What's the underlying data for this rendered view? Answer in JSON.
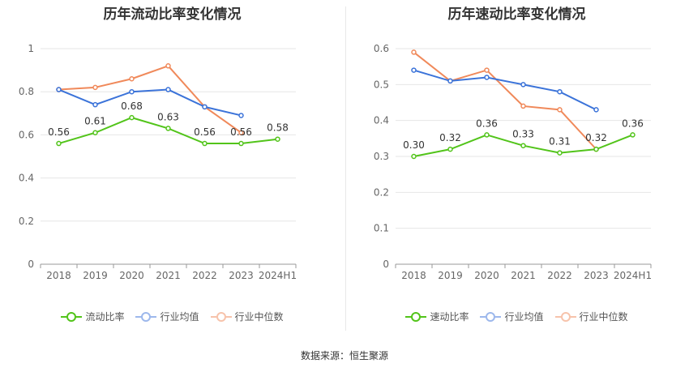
{
  "source": "数据来源：恒生聚源",
  "colors": {
    "primary": "#52c41a",
    "avg": "#3b73d9",
    "median": "#f0895a"
  },
  "chart_data": [
    {
      "type": "line",
      "title": "历年流动比率变化情况",
      "categories": [
        "2018",
        "2019",
        "2020",
        "2021",
        "2022",
        "2023",
        "2024H1"
      ],
      "ylim": [
        0,
        1
      ],
      "yticks": [
        "0",
        "0.2",
        "0.4",
        "0.6",
        "0.8",
        "1"
      ],
      "ytick_values": [
        0,
        0.2,
        0.4,
        0.6,
        0.8,
        1
      ],
      "series": [
        {
          "name": "流动比率",
          "role": "primary",
          "values": [
            0.56,
            0.61,
            0.68,
            0.63,
            0.56,
            0.56,
            0.58
          ],
          "labels": [
            "0.56",
            "0.61",
            "0.68",
            "0.63",
            "0.56",
            "0.56",
            "0.58"
          ]
        },
        {
          "name": "行业均值",
          "role": "avg",
          "values": [
            0.81,
            0.74,
            0.8,
            0.81,
            0.73,
            0.69,
            null
          ]
        },
        {
          "name": "行业中位数",
          "role": "median",
          "values": [
            0.81,
            0.82,
            0.86,
            0.92,
            0.73,
            0.61,
            null
          ]
        }
      ]
    },
    {
      "type": "line",
      "title": "历年速动比率变化情况",
      "categories": [
        "2018",
        "2019",
        "2020",
        "2021",
        "2022",
        "2023",
        "2024H1"
      ],
      "ylim": [
        0,
        0.6
      ],
      "yticks": [
        "0",
        "0.1",
        "0.2",
        "0.3",
        "0.4",
        "0.5",
        "0.6"
      ],
      "ytick_values": [
        0,
        0.1,
        0.2,
        0.3,
        0.4,
        0.5,
        0.6
      ],
      "series": [
        {
          "name": "速动比率",
          "role": "primary",
          "values": [
            0.3,
            0.32,
            0.36,
            0.33,
            0.31,
            0.32,
            0.36
          ],
          "labels": [
            "0.30",
            "0.32",
            "0.36",
            "0.33",
            "0.31",
            "0.32",
            "0.36"
          ]
        },
        {
          "name": "行业均值",
          "role": "avg",
          "values": [
            0.54,
            0.51,
            0.52,
            0.5,
            0.48,
            0.43,
            null
          ]
        },
        {
          "name": "行业中位数",
          "role": "median",
          "values": [
            0.59,
            0.51,
            0.54,
            0.44,
            0.43,
            0.32,
            null
          ]
        }
      ]
    }
  ]
}
